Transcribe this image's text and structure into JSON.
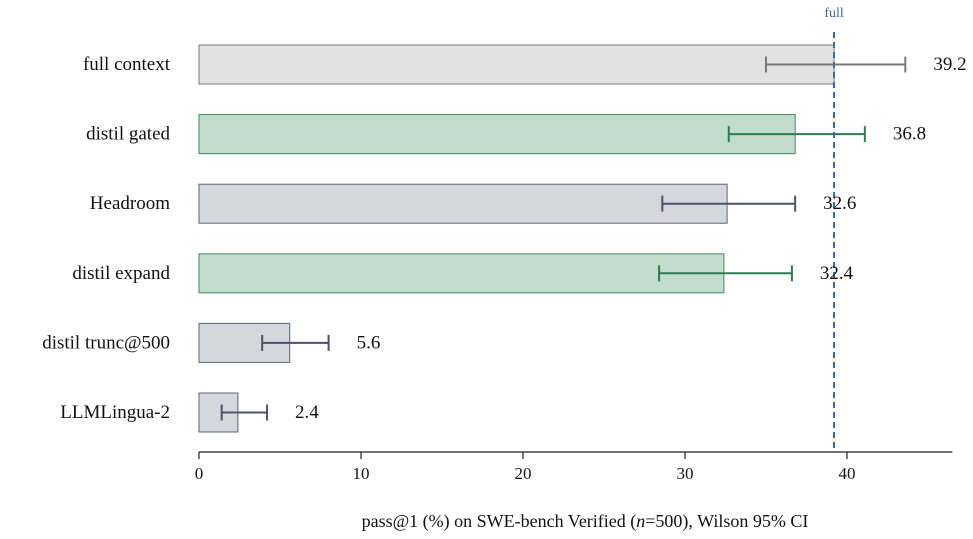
{
  "chart_data": {
    "type": "bar",
    "orientation": "horizontal",
    "categories": [
      "full context",
      "distil gated",
      "Headroom",
      "distil expand",
      "distil trunc@500",
      "LLMLingua-2"
    ],
    "values": [
      39.2,
      36.8,
      32.6,
      32.4,
      5.6,
      2.4
    ],
    "value_labels": [
      "39.2",
      "36.8",
      "32.6",
      "32.4",
      "5.6",
      "2.4"
    ],
    "ci_low": [
      35.0,
      32.7,
      28.6,
      28.4,
      3.9,
      1.4
    ],
    "ci_high": [
      43.6,
      41.1,
      36.8,
      36.6,
      8.0,
      4.2
    ],
    "groups": [
      "baseline",
      "distil",
      "other",
      "distil",
      "other",
      "other"
    ],
    "colors": {
      "baseline": {
        "fill": "#e2e2e2",
        "stroke": "#7a7a7a",
        "error": "#7a7a7a"
      },
      "distil": {
        "fill": "#c2ddcd",
        "stroke": "#3f8a5e",
        "error": "#2e7d52"
      },
      "other": {
        "fill": "#d5d7df",
        "stroke": "#5b6474",
        "error": "#4a5568"
      },
      "reference": "#3a6b9a"
    },
    "reference_line": {
      "value": 39.2,
      "label": "full"
    },
    "xlabel_parts": [
      {
        "text": "pass@1 (%) on SWE-bench Verified (",
        "italic": false
      },
      {
        "text": "n",
        "italic": true
      },
      {
        "text": "=500), Wilson 95% CI",
        "italic": false
      }
    ],
    "xticks": [
      0,
      10,
      20,
      30,
      40
    ],
    "xtick_labels": [
      "0",
      "10",
      "20",
      "30",
      "40"
    ],
    "xlim": [
      0,
      46.5
    ],
    "grid": false
  }
}
